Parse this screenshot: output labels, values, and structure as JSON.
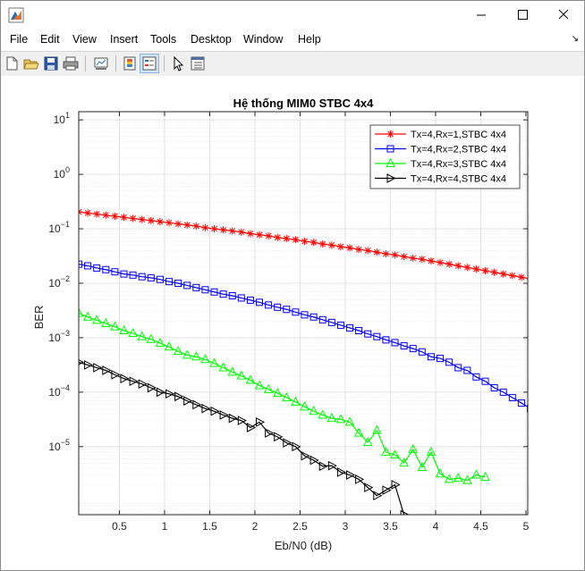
{
  "window": {
    "app_icon": "matlab-figure-icon",
    "controls": [
      "minimize-icon",
      "maximize-icon",
      "close-icon"
    ]
  },
  "menubar": {
    "items": [
      "File",
      "Edit",
      "View",
      "Insert",
      "Tools",
      "Desktop",
      "Window",
      "Help"
    ]
  },
  "toolbar": {
    "buttons": [
      "new-figure-icon",
      "open-file-icon",
      "save-icon",
      "print-icon",
      "link-plot-icon",
      "colorbar-icon",
      "legend-icon",
      "edit-plot-icon",
      "property-inspector-icon"
    ]
  },
  "colors": {
    "red": "#ff0000",
    "blue": "#0000ff",
    "green": "#00ff00",
    "black": "#000000"
  },
  "chart_data": {
    "type": "line",
    "title": "Hệ thống MIM0 STBC 4x4",
    "xlabel": "Eb/N0 (dB)",
    "ylabel": "BER",
    "yscale": "log",
    "xlim": [
      0.05,
      5.02
    ],
    "ylim_log10": [
      -6.25,
      1.15
    ],
    "xticks": [
      0.5,
      1,
      1.5,
      2,
      2.5,
      3,
      3.5,
      4,
      4.5,
      5
    ],
    "xtick_labels": [
      "0.5",
      "1",
      "1.5",
      "2",
      "2.5",
      "3",
      "3.5",
      "4",
      "4.5",
      "5"
    ],
    "yticks_exp": [
      -5,
      -4,
      -3,
      -2,
      -1,
      0,
      1
    ],
    "grid": true,
    "minor_grid": true,
    "legend": "top-right",
    "series": [
      {
        "name": "Tx=4,Rx=1,STBC 4x4",
        "color": "#ff0000",
        "marker": "asterisk",
        "x_start": 0.05,
        "x_step": 0.1,
        "log10_y": [
          -0.69,
          -0.71,
          -0.73,
          -0.75,
          -0.77,
          -0.79,
          -0.81,
          -0.83,
          -0.85,
          -0.87,
          -0.89,
          -0.91,
          -0.93,
          -0.95,
          -0.98,
          -1.0,
          -1.02,
          -1.04,
          -1.06,
          -1.09,
          -1.11,
          -1.13,
          -1.16,
          -1.18,
          -1.2,
          -1.23,
          -1.25,
          -1.28,
          -1.3,
          -1.33,
          -1.35,
          -1.38,
          -1.4,
          -1.43,
          -1.46,
          -1.48,
          -1.51,
          -1.54,
          -1.56,
          -1.59,
          -1.62,
          -1.65,
          -1.68,
          -1.71,
          -1.74,
          -1.77,
          -1.8,
          -1.83,
          -1.86,
          -1.89,
          -1.92
        ]
      },
      {
        "name": "Tx=4,Rx=2,STBC 4x4",
        "color": "#0000ff",
        "marker": "square",
        "x_start": 0.05,
        "x_step": 0.1,
        "log10_y": [
          -1.65,
          -1.68,
          -1.72,
          -1.75,
          -1.79,
          -1.83,
          -1.85,
          -1.88,
          -1.9,
          -1.93,
          -1.97,
          -2.0,
          -2.04,
          -2.08,
          -2.12,
          -2.16,
          -2.2,
          -2.23,
          -2.27,
          -2.31,
          -2.35,
          -2.4,
          -2.44,
          -2.48,
          -2.53,
          -2.58,
          -2.62,
          -2.67,
          -2.72,
          -2.77,
          -2.82,
          -2.87,
          -2.93,
          -2.98,
          -3.04,
          -3.09,
          -3.15,
          -3.2,
          -3.26,
          -3.35,
          -3.38,
          -3.45,
          -3.55,
          -3.6,
          -3.72,
          -3.8,
          -3.92,
          -4.0,
          -4.1,
          -4.2,
          -4.3,
          -4.5,
          -4.55
        ]
      },
      {
        "name": "Tx=4,Rx=3,STBC 4x4",
        "color": "#00ff00",
        "marker": "triangle-up",
        "x_start": 0.05,
        "x_step": 0.1,
        "log10_y": [
          -2.55,
          -2.62,
          -2.68,
          -2.74,
          -2.8,
          -2.87,
          -2.92,
          -2.98,
          -3.03,
          -3.1,
          -3.17,
          -3.25,
          -3.32,
          -3.35,
          -3.4,
          -3.47,
          -3.55,
          -3.63,
          -3.7,
          -3.78,
          -3.88,
          -3.95,
          -4.02,
          -4.1,
          -4.18,
          -4.27,
          -4.35,
          -4.42,
          -4.48,
          -4.5,
          -4.55,
          -4.75,
          -4.92,
          -4.7,
          -5.1,
          -5.15,
          -5.3,
          -5.05,
          -5.38,
          -5.1,
          -5.5,
          -5.6,
          -5.58,
          -5.62,
          -5.52,
          -5.56
        ]
      },
      {
        "name": "Tx=4,Rx=4,STBC 4x4",
        "color": "#000000",
        "marker": "triangle-right",
        "x_start": 0.05,
        "x_step": 0.1,
        "log10_y": [
          -3.45,
          -3.5,
          -3.55,
          -3.6,
          -3.68,
          -3.75,
          -3.8,
          -3.85,
          -3.92,
          -4.0,
          -4.03,
          -4.08,
          -4.16,
          -4.23,
          -4.3,
          -4.35,
          -4.42,
          -4.48,
          -4.52,
          -4.65,
          -4.55,
          -4.75,
          -4.82,
          -4.93,
          -5.0,
          -5.17,
          -5.25,
          -5.36,
          -5.35,
          -5.47,
          -5.52,
          -5.6,
          -5.75,
          -5.9,
          -5.8,
          -5.7,
          -6.25
        ]
      }
    ]
  }
}
